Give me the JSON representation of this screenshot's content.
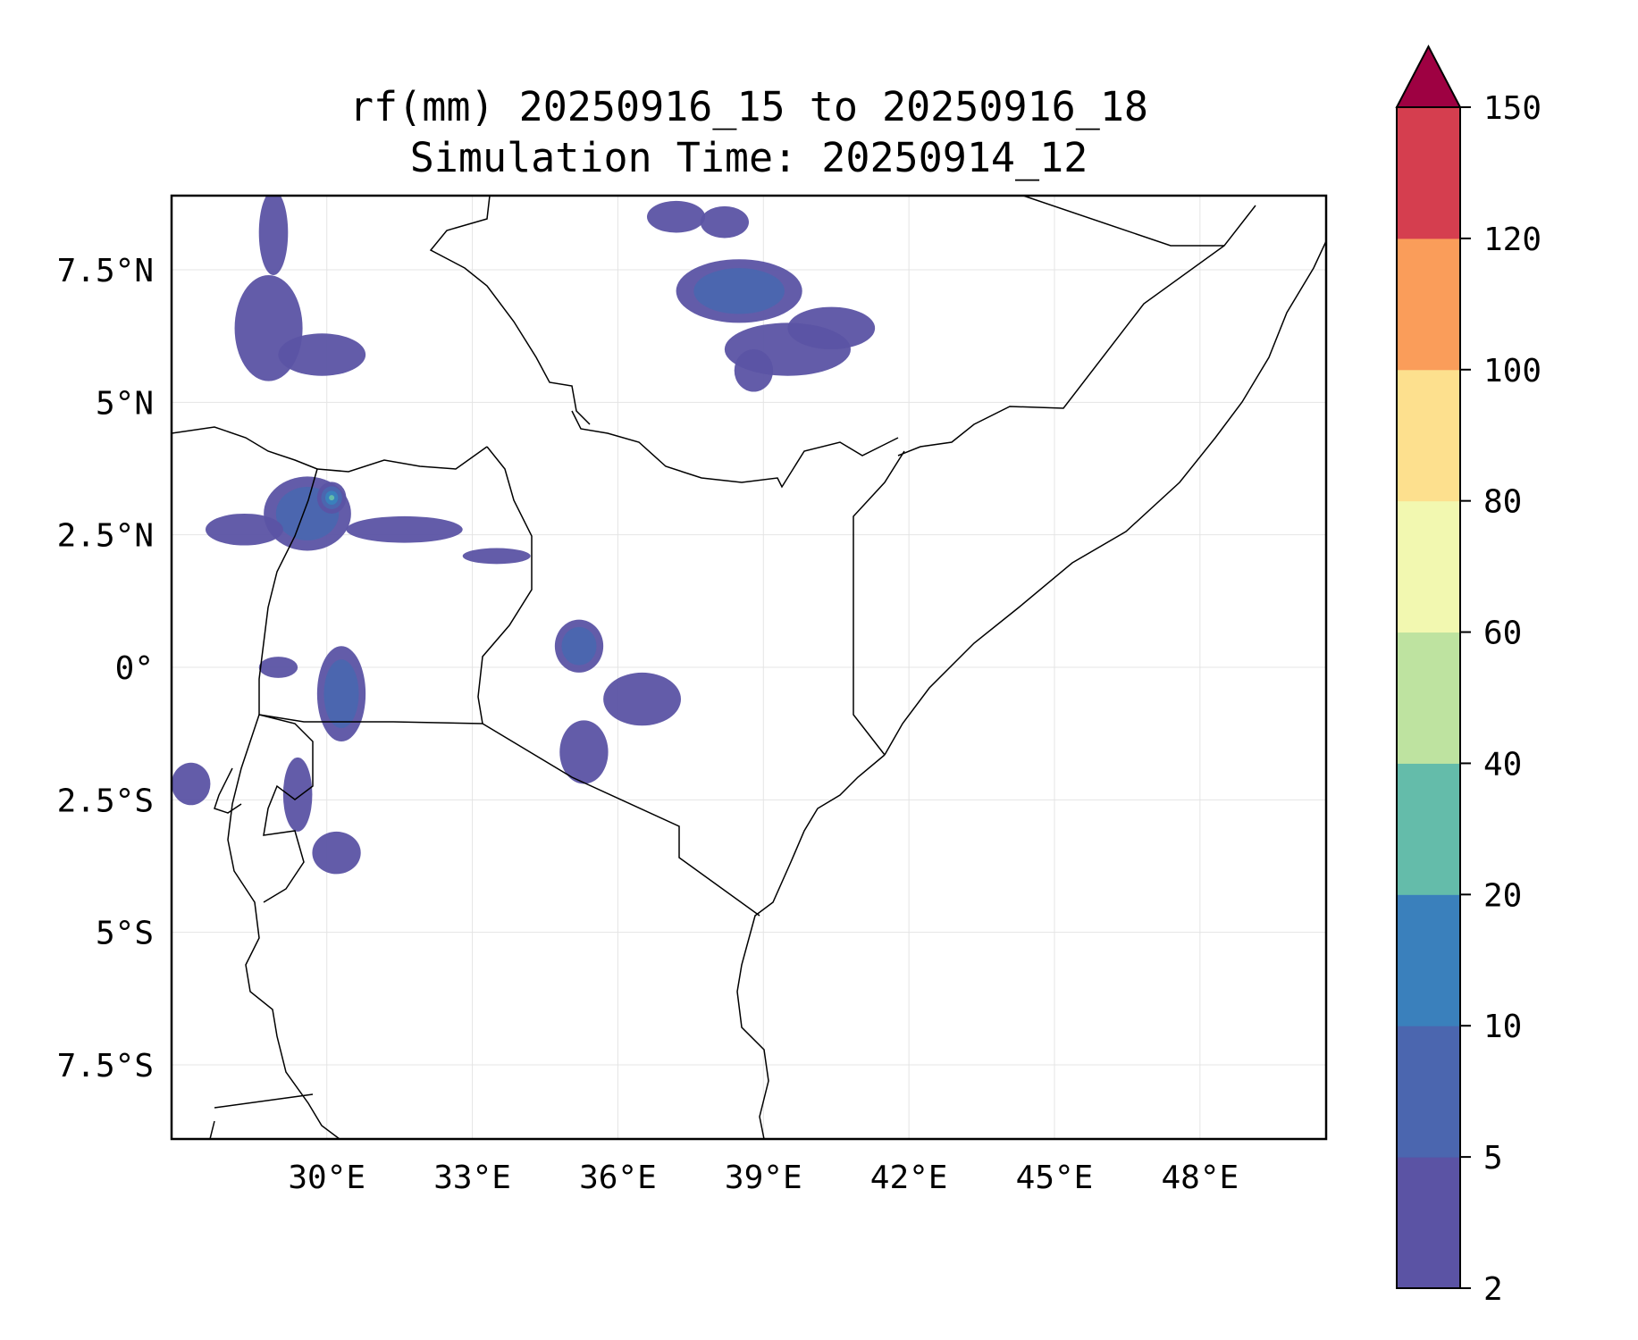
{
  "title": {
    "line1": "rf(mm) 20250916_15 to 20250916_18",
    "line2": "Simulation Time: 20250914_12"
  },
  "map": {
    "lon_range": [
      26.8,
      50.6
    ],
    "lat_range": [
      -8.9,
      8.9
    ],
    "x_ticks": [
      {
        "value": 30,
        "label": "30°E"
      },
      {
        "value": 33,
        "label": "33°E"
      },
      {
        "value": 36,
        "label": "36°E"
      },
      {
        "value": 39,
        "label": "39°E"
      },
      {
        "value": 42,
        "label": "42°E"
      },
      {
        "value": 45,
        "label": "45°E"
      },
      {
        "value": 48,
        "label": "48°E"
      }
    ],
    "y_ticks": [
      {
        "value": 7.5,
        "label": "7.5°N"
      },
      {
        "value": 5,
        "label": "5°N"
      },
      {
        "value": 2.5,
        "label": "2.5°N"
      },
      {
        "value": 0,
        "label": "0°"
      },
      {
        "value": -2.5,
        "label": "2.5°S"
      },
      {
        "value": -5,
        "label": "5°S"
      },
      {
        "value": -7.5,
        "label": "7.5°S"
      }
    ],
    "gridlines": true,
    "rain_cells": [
      {
        "lon": 28.8,
        "lat": 6.4,
        "rx": 0.7,
        "ry": 1.0,
        "level": 0
      },
      {
        "lon": 29.9,
        "lat": 5.9,
        "rx": 0.9,
        "ry": 0.4,
        "level": 0
      },
      {
        "lon": 28.9,
        "lat": 8.2,
        "rx": 0.3,
        "ry": 0.8,
        "level": 0
      },
      {
        "lon": 29.6,
        "lat": 2.9,
        "rx": 0.9,
        "ry": 0.7,
        "level": 1
      },
      {
        "lon": 28.3,
        "lat": 2.6,
        "rx": 0.8,
        "ry": 0.3,
        "level": 0
      },
      {
        "lon": 30.1,
        "lat": 3.2,
        "rx": 0.3,
        "ry": 0.3,
        "level": 3
      },
      {
        "lon": 31.6,
        "lat": 2.6,
        "rx": 1.2,
        "ry": 0.25,
        "level": 0
      },
      {
        "lon": 33.5,
        "lat": 2.1,
        "rx": 0.7,
        "ry": 0.15,
        "level": 0
      },
      {
        "lon": 30.3,
        "lat": -0.5,
        "rx": 0.5,
        "ry": 0.9,
        "level": 1
      },
      {
        "lon": 29.4,
        "lat": -2.4,
        "rx": 0.3,
        "ry": 0.7,
        "level": 0
      },
      {
        "lon": 30.2,
        "lat": -3.5,
        "rx": 0.5,
        "ry": 0.4,
        "level": 0
      },
      {
        "lon": 27.2,
        "lat": -2.2,
        "rx": 0.4,
        "ry": 0.4,
        "level": 0
      },
      {
        "lon": 29.0,
        "lat": 0.0,
        "rx": 0.4,
        "ry": 0.2,
        "level": 0
      },
      {
        "lon": 35.2,
        "lat": 0.4,
        "rx": 0.5,
        "ry": 0.5,
        "level": 1
      },
      {
        "lon": 36.5,
        "lat": -0.6,
        "rx": 0.8,
        "ry": 0.5,
        "level": 0
      },
      {
        "lon": 35.3,
        "lat": -1.6,
        "rx": 0.5,
        "ry": 0.6,
        "level": 0
      },
      {
        "lon": 38.5,
        "lat": 7.1,
        "rx": 1.3,
        "ry": 0.6,
        "level": 1
      },
      {
        "lon": 39.5,
        "lat": 6.0,
        "rx": 1.3,
        "ry": 0.5,
        "level": 0
      },
      {
        "lon": 40.4,
        "lat": 6.4,
        "rx": 0.9,
        "ry": 0.4,
        "level": 0
      },
      {
        "lon": 37.2,
        "lat": 8.5,
        "rx": 0.6,
        "ry": 0.3,
        "level": 0
      },
      {
        "lon": 38.2,
        "lat": 8.4,
        "rx": 0.5,
        "ry": 0.3,
        "level": 0
      },
      {
        "lon": 38.8,
        "lat": 5.6,
        "rx": 0.4,
        "ry": 0.4,
        "level": 0
      }
    ]
  },
  "colorbar": {
    "levels": [
      2,
      5,
      10,
      20,
      40,
      60,
      80,
      100,
      120,
      150
    ],
    "tick_labels": [
      "2",
      "5",
      "10",
      "20",
      "40",
      "60",
      "80",
      "100",
      "120",
      "150"
    ],
    "colors": [
      "#5b53a4",
      "#4b66af",
      "#3a80bc",
      "#64bcaa",
      "#bee3a0",
      "#f2f8b0",
      "#fde08e",
      "#fa9d5a",
      "#d53e4f"
    ],
    "extend_color": "#9e0142",
    "extend": "max"
  }
}
